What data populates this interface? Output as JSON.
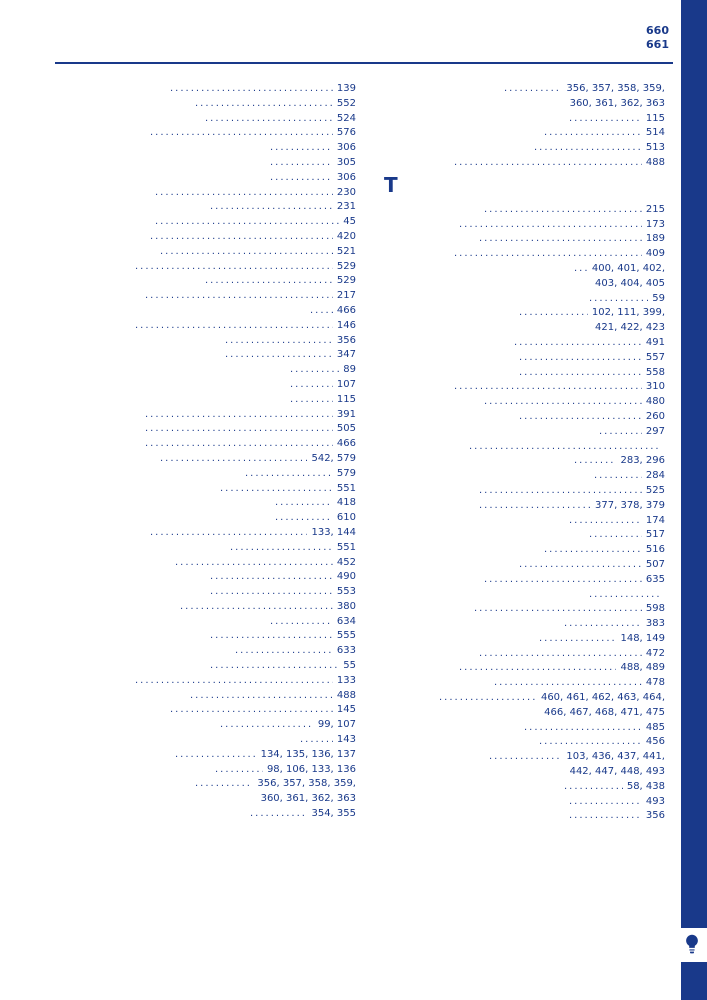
{
  "page_left": "660",
  "page_right": "661",
  "accent_color": "#19398a",
  "background_color": "#ffffff",
  "font_size_entry": 10,
  "font_size_pagenum": 11,
  "font_size_letter": 20,
  "section_letter": "T",
  "left_column": [
    {
      "term_width": 95,
      "pages": "139"
    },
    {
      "term_width": 120,
      "pages": "552"
    },
    {
      "term_width": 130,
      "pages": "524"
    },
    {
      "term_width": 75,
      "pages": "576"
    },
    {
      "term_width": 195,
      "pages": "306"
    },
    {
      "term_width": 195,
      "pages": "305"
    },
    {
      "term_width": 195,
      "pages": "306"
    },
    {
      "term_width": 80,
      "pages": "230"
    },
    {
      "term_width": 135,
      "pages": "231"
    },
    {
      "term_width": 80,
      "pages": "45"
    },
    {
      "term_width": 75,
      "pages": "420"
    },
    {
      "term_width": 85,
      "pages": "521"
    },
    {
      "term_width": 60,
      "pages": "529"
    },
    {
      "term_width": 130,
      "pages": "529"
    },
    {
      "term_width": 70,
      "pages": "217"
    },
    {
      "term_width": 235,
      "pages": "466"
    },
    {
      "term_width": 60,
      "pages": "146"
    },
    {
      "term_width": 150,
      "pages": "356"
    },
    {
      "term_width": 150,
      "pages": "347"
    },
    {
      "term_width": 215,
      "pages": "89"
    },
    {
      "term_width": 215,
      "pages": "107"
    },
    {
      "term_width": 215,
      "pages": "115"
    },
    {
      "term_width": 70,
      "pages": "391"
    },
    {
      "term_width": 70,
      "pages": "505"
    },
    {
      "term_width": 70,
      "pages": "466"
    },
    {
      "term_width": 85,
      "pages": "542, 579"
    },
    {
      "term_width": 170,
      "pages": "579"
    },
    {
      "term_width": 145,
      "pages": "551"
    },
    {
      "term_width": 200,
      "pages": "418"
    },
    {
      "term_width": 200,
      "pages": "610"
    },
    {
      "term_width": 75,
      "pages": "133, 144"
    },
    {
      "term_width": 155,
      "pages": "551"
    },
    {
      "term_width": 100,
      "pages": "452"
    },
    {
      "term_width": 135,
      "pages": "490"
    },
    {
      "term_width": 135,
      "pages": "553"
    },
    {
      "term_width": 105,
      "pages": "380"
    },
    {
      "term_width": 195,
      "pages": "634"
    },
    {
      "term_width": 135,
      "pages": "555"
    },
    {
      "term_width": 160,
      "pages": "633"
    },
    {
      "term_width": 135,
      "pages": "55"
    },
    {
      "term_width": 60,
      "pages": "133"
    },
    {
      "term_width": 115,
      "pages": "488"
    },
    {
      "term_width": 95,
      "pages": "145"
    },
    {
      "term_width": 145,
      "pages": "99, 107"
    },
    {
      "term_width": 225,
      "pages": "143"
    },
    {
      "term_width": 100,
      "pages": "134, 135, 136, 137"
    },
    {
      "term_width": 140,
      "pages": "98, 106, 133, 136"
    },
    {
      "term_width": 120,
      "pages": "356, 357, 358, 359,"
    },
    {
      "term_width": 0,
      "pages": "360, 361, 362, 363",
      "continuation": true
    },
    {
      "term_width": 175,
      "pages": "354, 355"
    }
  ],
  "right_top": [
    {
      "term_width": 120,
      "pages": "356, 357, 358, 359,"
    },
    {
      "term_width": 0,
      "pages": "360, 361, 362, 363",
      "continuation": true
    },
    {
      "term_width": 185,
      "pages": "115"
    },
    {
      "term_width": 160,
      "pages": "514"
    },
    {
      "term_width": 150,
      "pages": "513"
    },
    {
      "term_width": 70,
      "pages": "488"
    }
  ],
  "right_after_letter": [
    {
      "term_width": 100,
      "pages": "215"
    },
    {
      "term_width": 75,
      "pages": "173"
    },
    {
      "term_width": 95,
      "pages": "189"
    },
    {
      "term_width": 70,
      "pages": "409"
    },
    {
      "term_width": 190,
      "pages": "400, 401, 402,"
    },
    {
      "term_width": 0,
      "pages": "403, 404, 405",
      "continuation": true
    },
    {
      "term_width": 205,
      "pages": "59"
    },
    {
      "term_width": 135,
      "pages": "102, 111, 399,"
    },
    {
      "term_width": 0,
      "pages": "421, 422, 423",
      "continuation": true
    },
    {
      "term_width": 130,
      "pages": "491"
    },
    {
      "term_width": 135,
      "pages": "557"
    },
    {
      "term_width": 135,
      "pages": "558"
    },
    {
      "term_width": 70,
      "pages": "310"
    },
    {
      "term_width": 100,
      "pages": "480"
    },
    {
      "term_width": 135,
      "pages": "260"
    },
    {
      "term_width": 215,
      "pages": "297"
    },
    {
      "term_width": 85,
      "pages": ""
    },
    {
      "term_width": 190,
      "pages": "283, 296"
    },
    {
      "term_width": 210,
      "pages": "284"
    },
    {
      "term_width": 95,
      "pages": "525"
    },
    {
      "term_width": 95,
      "pages": "377, 378, 379"
    },
    {
      "term_width": 185,
      "pages": "174"
    },
    {
      "term_width": 205,
      "pages": "517"
    },
    {
      "term_width": 160,
      "pages": "516"
    },
    {
      "term_width": 135,
      "pages": "507"
    },
    {
      "term_width": 100,
      "pages": "635"
    },
    {
      "term_width": 205,
      "pages": ""
    },
    {
      "term_width": 90,
      "pages": "598"
    },
    {
      "term_width": 180,
      "pages": "383"
    },
    {
      "term_width": 155,
      "pages": "148, 149"
    },
    {
      "term_width": 95,
      "pages": "472"
    },
    {
      "term_width": 75,
      "pages": "488, 489"
    },
    {
      "term_width": 110,
      "pages": "478"
    },
    {
      "term_width": 55,
      "pages": "460, 461, 462, 463, 464,"
    },
    {
      "term_width": 0,
      "pages": "466, 467, 468, 471, 475",
      "continuation": true
    },
    {
      "term_width": 140,
      "pages": "485"
    },
    {
      "term_width": 155,
      "pages": "456"
    },
    {
      "term_width": 105,
      "pages": "103, 436, 437, 441,"
    },
    {
      "term_width": 0,
      "pages": "442, 447, 448, 493",
      "continuation": true
    },
    {
      "term_width": 180,
      "pages": "58, 438"
    },
    {
      "term_width": 185,
      "pages": "493"
    },
    {
      "term_width": 185,
      "pages": "356"
    }
  ]
}
